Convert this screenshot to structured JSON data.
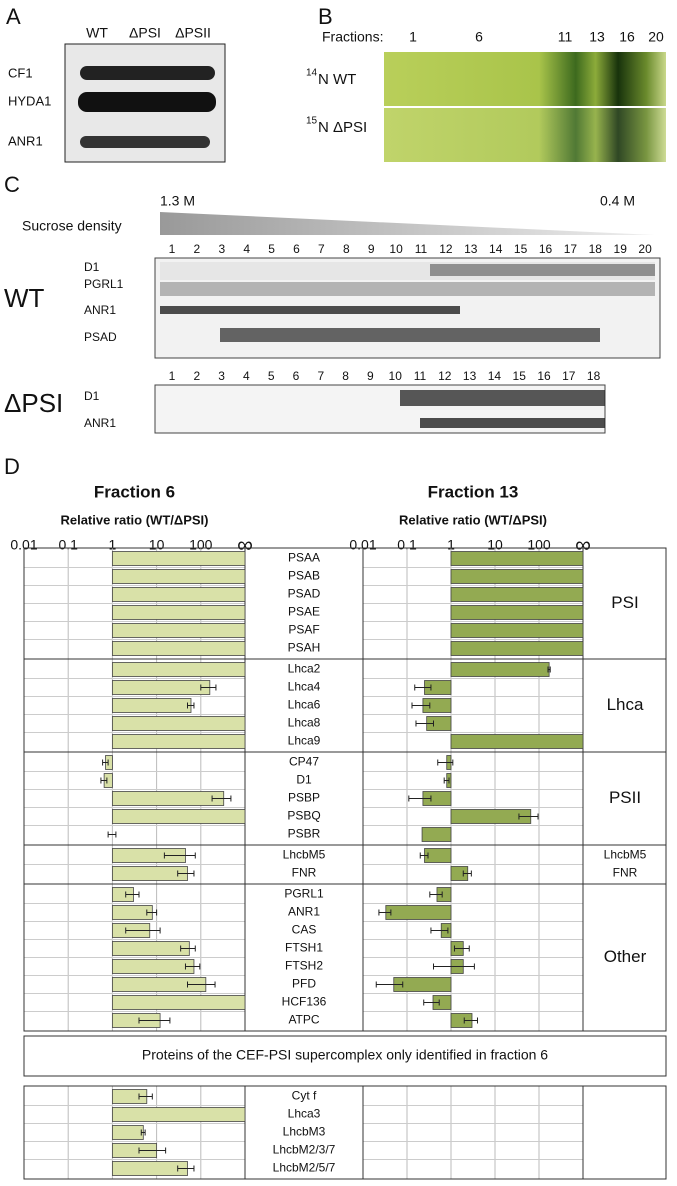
{
  "panels": {
    "a": {
      "label": "A",
      "lanes": [
        "WT",
        "ΔPSI",
        "ΔPSII"
      ],
      "bands": [
        "CF1",
        "HYDA1",
        "ANR1"
      ]
    },
    "b": {
      "label": "B",
      "fractions_label": "Fractions:",
      "fractions": [
        1,
        6,
        11,
        13,
        16,
        20
      ],
      "rows": [
        {
          "isotope": "14",
          "name": "N WT"
        },
        {
          "isotope": "15",
          "name": "N ΔPSI"
        }
      ]
    },
    "c": {
      "label": "C",
      "density_high": "1.3 M",
      "density_low": "0.4 M",
      "density_label": "Sucrose density",
      "wt": {
        "label": "WT",
        "lanes": [
          1,
          2,
          3,
          4,
          5,
          6,
          7,
          8,
          9,
          10,
          11,
          12,
          13,
          14,
          15,
          16,
          17,
          18,
          19,
          20
        ],
        "bands": [
          "D1",
          "PGRL1",
          "ANR1",
          "PSAD"
        ]
      },
      "dpsi": {
        "label": "ΔPSI",
        "lanes": [
          1,
          2,
          3,
          4,
          5,
          6,
          7,
          8,
          9,
          10,
          11,
          12,
          13,
          14,
          15,
          16,
          17,
          18
        ],
        "bands": [
          "D1",
          "ANR1"
        ]
      }
    }
  },
  "chart_data": {
    "type": "bar",
    "panel_label": "D",
    "axis_label": "Relative ratio (WT/ΔPSI)",
    "log_scale": true,
    "grid": true,
    "xlim": [
      0.01,
      1000
    ],
    "xticks": [
      0.01,
      0.1,
      1,
      10,
      100,
      {
        "value": 1000,
        "label": "∞"
      }
    ],
    "categories": [
      "PSAA",
      "PSAB",
      "PSAD",
      "PSAE",
      "PSAF",
      "PSAH",
      "Lhca2",
      "Lhca4",
      "Lhca6",
      "Lhca8",
      "Lhca9",
      "CP47",
      "D1",
      "PSBP",
      "PSBQ",
      "PSBR",
      "LhcbM5",
      "FNR",
      "PGRL1",
      "ANR1",
      "CAS",
      "FTSH1",
      "FTSH2",
      "PFD",
      "HCF136",
      "ATPC",
      "Cyt f",
      "Lhca3",
      "LhcbM3",
      "LhcbM2/3/7",
      "LhcbM2/5/7"
    ],
    "groups": [
      {
        "label": "PSI",
        "size": 6
      },
      {
        "label": "Lhca",
        "size": 5
      },
      {
        "label": "PSII",
        "size": 5
      },
      {
        "label": [
          "LhcbM5",
          "FNR"
        ],
        "size": 2
      },
      {
        "label": "Other",
        "size": 8
      },
      {
        "heading": "Proteins of the CEF-PSI supercomplex only identified in fraction 6",
        "size": 5
      }
    ],
    "series": [
      {
        "name": "Fraction 6",
        "color": "#d9e1a8",
        "values": [
          1000,
          1000,
          1000,
          1000,
          1000,
          1000,
          1000,
          160,
          60,
          1000,
          1000,
          0.7,
          0.65,
          330,
          1000,
          1,
          45,
          50,
          3,
          8,
          7,
          55,
          70,
          130,
          1000,
          12,
          6,
          1000,
          5,
          10,
          50
        ],
        "errors": [
          null,
          null,
          null,
          null,
          null,
          null,
          null,
          60,
          10,
          null,
          null,
          0.1,
          0.1,
          150,
          null,
          0.2,
          30,
          20,
          1,
          2,
          5,
          20,
          25,
          80,
          null,
          8,
          2,
          null,
          0.5,
          6,
          20
        ]
      },
      {
        "name": "Fraction 13",
        "color": "#93aa52",
        "values": [
          1000,
          1000,
          1000,
          1000,
          1000,
          1000,
          170,
          0.25,
          0.23,
          0.28,
          1000,
          0.8,
          0.8,
          0.23,
          65,
          0.22,
          0.25,
          2.4,
          0.48,
          0.033,
          0.6,
          1.9,
          1.9,
          0.05,
          0.39,
          3,
          null,
          null,
          null,
          null,
          null
        ],
        "errors": [
          null,
          null,
          null,
          null,
          null,
          null,
          10,
          0.1,
          0.1,
          0.12,
          null,
          0.3,
          0.1,
          0.12,
          30,
          null,
          0.05,
          0.5,
          0.15,
          0.01,
          0.25,
          0.7,
          1.5,
          0.03,
          0.15,
          1,
          null,
          null,
          null,
          null,
          null
        ]
      }
    ]
  }
}
